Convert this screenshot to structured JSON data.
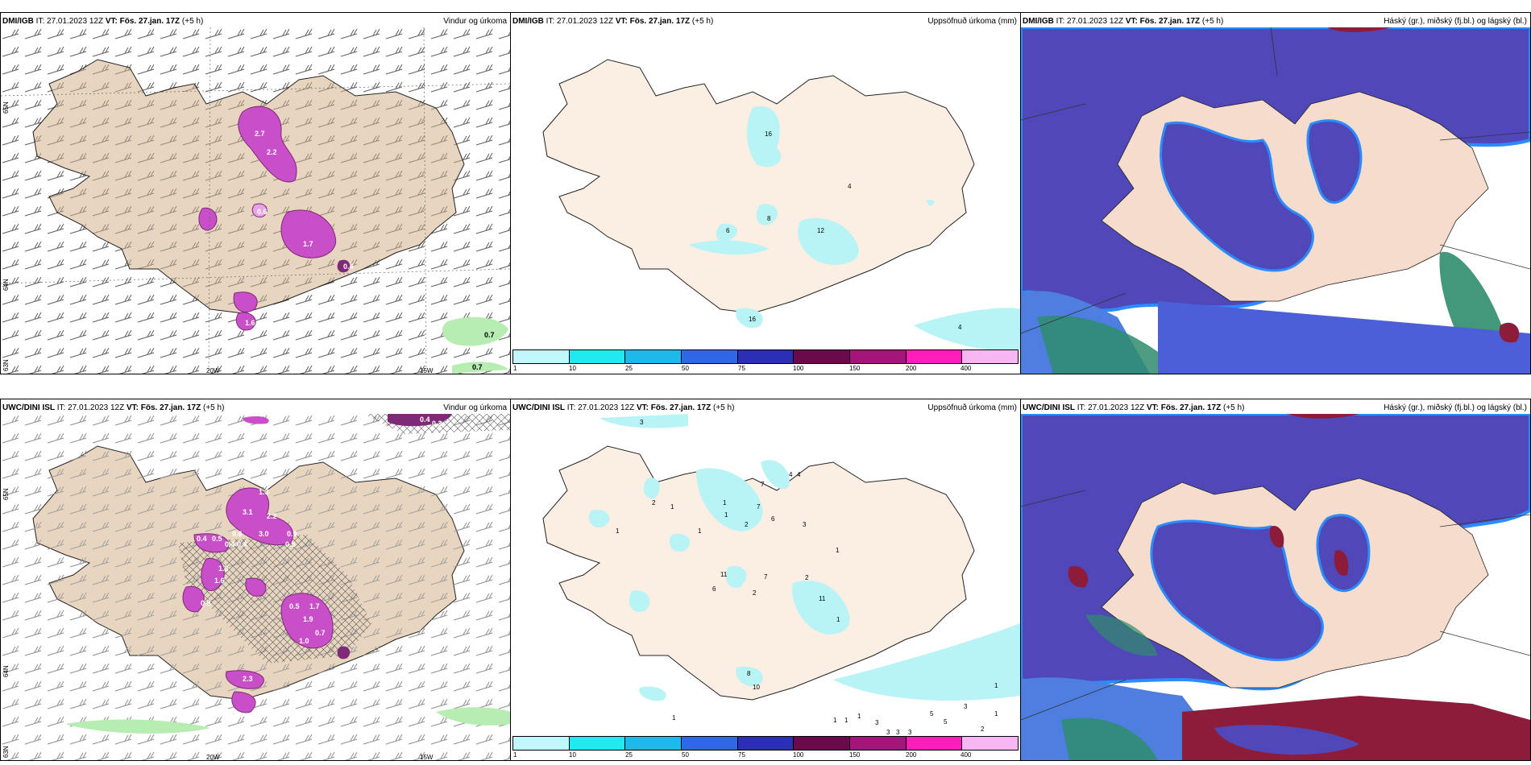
{
  "panels": [
    {
      "model": "DMI/IGB",
      "it": "IT: 27.01.2023 12Z",
      "vt": "VT: Fös. 27.jan. 17Z",
      "lead": "(+5 h)",
      "title": "Vindur og úrkoma"
    },
    {
      "model": "DMI/IGB",
      "it": "IT: 27.01.2023 12Z",
      "vt": "VT: Fös. 27.jan. 17Z",
      "lead": "(+5 h)",
      "title": "Uppsöfnuð úrkoma (mm)"
    },
    {
      "model": "DMI/IGB",
      "it": "IT: 27.01.2023 12Z",
      "vt": "VT: Fös. 27.jan. 17Z",
      "lead": "(+5 h)",
      "title": "Háský (gr.), miðský (fj.bl.) og lágský (bl.)"
    },
    {
      "model": "UWC/DINI ISL",
      "it": "IT: 27.01.2023 12Z",
      "vt": "VT: Fös. 27.jan. 17Z",
      "lead": "(+5 h)",
      "title": "Vindur og úrkoma"
    },
    {
      "model": "UWC/DINI ISL",
      "it": "IT: 27.01.2023 12Z",
      "vt": "VT: Fös. 27.jan. 17Z",
      "lead": "(+5 h)",
      "title": "Uppsöfnuð úrkoma (mm)"
    },
    {
      "model": "UWC/DINI ISL",
      "it": "IT: 27.01.2023 12Z",
      "vt": "VT: Fös. 27.jan. 17Z",
      "lead": "(+5 h)",
      "title": "Háský (gr.), miðský (fj.bl.) og lágský (bl.)"
    }
  ],
  "axis_labels": {
    "lon_20w": "20W",
    "lon_15w": "15W",
    "lat_65n": "65N",
    "lat_64n": "64N",
    "lat_63n": "63N"
  },
  "colorbar": {
    "ticks": [
      "1",
      "10",
      "25",
      "50",
      "75",
      "100",
      "150",
      "200",
      "400"
    ],
    "colors": [
      "#bff7fb",
      "#22e8f0",
      "#1eb8ea",
      "#2f67e6",
      "#2a2fb5",
      "#6a0a4a",
      "#a3157a",
      "#ff1cb8",
      "#f8b6f2"
    ]
  },
  "values": {
    "p1": [
      "2.7",
      "2.2",
      "1.7",
      "0.4",
      "0.6",
      "0.7",
      "0.7",
      "1.6"
    ],
    "p2": [
      "16",
      "4",
      "8",
      "6",
      "12",
      "4",
      "16"
    ],
    "p4": [
      "0.4",
      "0.3",
      "1.3",
      "3.1",
      "2.2",
      "0.4",
      "0.5",
      "0.6",
      "0.9",
      "3.0",
      "0.4",
      "0.4",
      "0.5",
      "1.3",
      "1.6",
      "0.8",
      "0.5",
      "1.7",
      "1.9",
      "0.7",
      "1.0",
      "2.3"
    ],
    "p5": [
      "3",
      "4",
      "4",
      "7",
      "2",
      "1",
      "1",
      "1",
      "1",
      "2",
      "7",
      "6",
      "3",
      "1",
      "11",
      "6",
      "7",
      "2",
      "2",
      "11",
      "1",
      "1",
      "8",
      "10",
      "1",
      "1",
      "1",
      "1",
      "3",
      "3",
      "3",
      "3",
      "5",
      "5",
      "3",
      "2",
      "1",
      "1"
    ]
  },
  "colors": {
    "land": "#f5dccc",
    "land_p1": "#e8d5c0",
    "precip_light": "#e7a3e3",
    "precip_mid": "#c94fc8",
    "precip_dark": "#7e2a78",
    "snow_green": "#b7ecb2",
    "cloud_blue": "#5047b8",
    "cloud_edge": "#2a8cff",
    "cloud_light": "#7ad0ff",
    "cloud_green": "#2f8c6c",
    "cloud_red": "#8c1c3a",
    "accum_cyan": "#b8f3f5"
  }
}
